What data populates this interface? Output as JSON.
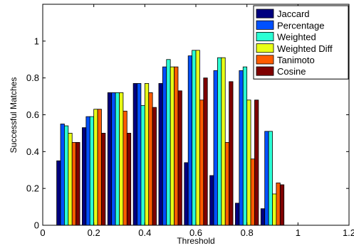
{
  "chart_data": {
    "type": "bar",
    "title": "",
    "xlabel": "Threshold",
    "ylabel": "Successful Matches",
    "xlim": [
      0,
      1.2
    ],
    "ylim": [
      0,
      1.2
    ],
    "x_ticks": [
      "0",
      "0.2",
      "0.4",
      "0.6",
      "0.8",
      "1",
      "1.2"
    ],
    "y_ticks": [
      "0",
      "0.2",
      "0.4",
      "0.6",
      "0.8",
      "1"
    ],
    "x": [
      0.1,
      0.2,
      0.3,
      0.4,
      0.5,
      0.6,
      0.7,
      0.8,
      0.9
    ],
    "grid": false,
    "legend_position": "top-right",
    "series": [
      {
        "name": "Jaccard",
        "color": "#00007f",
        "values": [
          0.35,
          0.53,
          0.72,
          0.77,
          0.77,
          0.34,
          0.27,
          0.12,
          0.09
        ]
      },
      {
        "name": "Percentage",
        "color": "#0050ff",
        "values": [
          0.55,
          0.59,
          0.72,
          0.77,
          0.86,
          0.92,
          0.84,
          0.84,
          0.51
        ]
      },
      {
        "name": "Weighted",
        "color": "#2affd4",
        "values": [
          0.54,
          0.59,
          0.72,
          0.65,
          0.9,
          0.95,
          0.91,
          0.86,
          0.51
        ]
      },
      {
        "name": "Weighted Diff",
        "color": "#e8ff16",
        "values": [
          0.5,
          0.63,
          0.72,
          0.77,
          0.86,
          0.95,
          0.91,
          0.68,
          0.17
        ]
      },
      {
        "name": "Tanimoto",
        "color": "#ff5c00",
        "values": [
          0.45,
          0.63,
          0.62,
          0.72,
          0.86,
          0.68,
          0.45,
          0.36,
          0.23
        ]
      },
      {
        "name": "Cosine",
        "color": "#7f0000",
        "values": [
          0.45,
          0.5,
          0.5,
          0.64,
          0.73,
          0.8,
          0.78,
          0.68,
          0.22
        ]
      }
    ]
  }
}
